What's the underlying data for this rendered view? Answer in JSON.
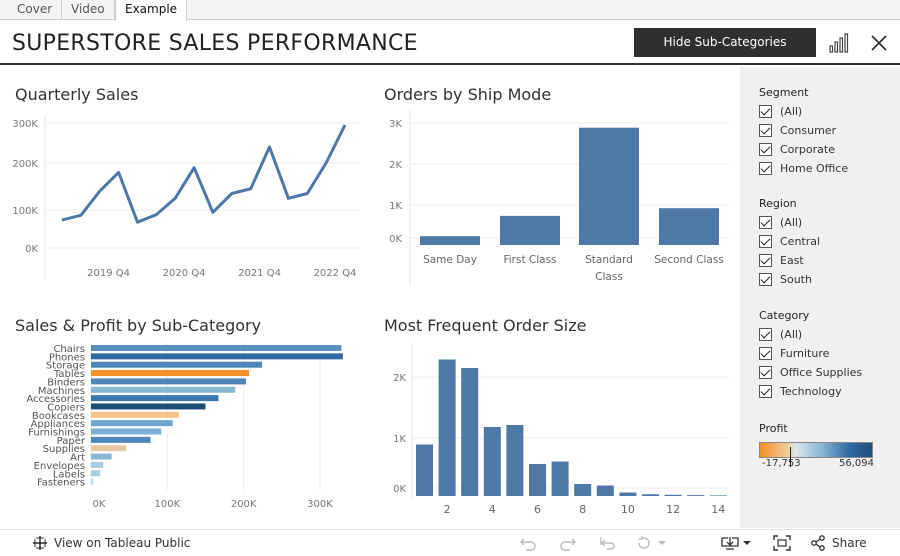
{
  "tabs": [
    {
      "label": "Cover",
      "active": false
    },
    {
      "label": "Video",
      "active": false
    },
    {
      "label": "Example",
      "active": true
    }
  ],
  "header": {
    "title": "SUPERSTORE SALES PERFORMANCE",
    "toggle_button": "Hide Sub-Categories"
  },
  "panels": {
    "quarterly": "Quarterly Sales",
    "shipmode": "Orders by Ship Mode",
    "subcategory": "Sales & Profit by Sub-Category",
    "ordersize": "Most Frequent Order Size"
  },
  "chart_data": [
    {
      "type": "line",
      "title": "Quarterly Sales",
      "y_ticks": [
        "0K",
        "100K",
        "200K",
        "300K"
      ],
      "x_ticks": [
        "2019 Q4",
        "2020 Q4",
        "2021 Q4",
        "2022 Q4"
      ],
      "ylim": [
        0,
        330000
      ],
      "series_color": "#4e79a7",
      "values": [
        74000,
        86000,
        140000,
        180000,
        68000,
        88000,
        125000,
        190000,
        94000,
        135000,
        145000,
        240000,
        125000,
        135000,
        200000,
        295000
      ]
    },
    {
      "type": "bar",
      "title": "Orders by Ship Mode",
      "y_ticks": [
        "0K",
        "1K",
        "2K",
        "3K"
      ],
      "ylim": [
        0,
        3300
      ],
      "categories": [
        [
          "Same Day"
        ],
        [
          "First Class"
        ],
        [
          "Standard",
          "Class"
        ],
        [
          "Second Class"
        ]
      ],
      "values": [
        230,
        760,
        3060,
        960
      ],
      "color": "#4e79a7"
    },
    {
      "type": "bar",
      "orientation": "horizontal",
      "title": "Sales & Profit by Sub-Category",
      "x_ticks": [
        "0K",
        "100K",
        "200K",
        "300K"
      ],
      "xlim": [
        0,
        340000
      ],
      "categories": [
        "Chairs",
        "Phones",
        "Storage",
        "Tables",
        "Binders",
        "Machines",
        "Accessories",
        "Copiers",
        "Bookcases",
        "Appliances",
        "Furnishings",
        "Paper",
        "Supplies",
        "Art",
        "Envelopes",
        "Labels",
        "Fasteners"
      ],
      "values": [
        328000,
        330000,
        224000,
        207000,
        203000,
        189000,
        167000,
        150000,
        115000,
        107000,
        92000,
        78000,
        46000,
        27000,
        16000,
        12000,
        3000
      ],
      "colors": [
        "#5b8fbf",
        "#2f6aa3",
        "#4e86bc",
        "#f28e2b",
        "#4e86bc",
        "#8ab6d6",
        "#3b77b1",
        "#1f4e79",
        "#f5c48a",
        "#6fa4cf",
        "#7ab0d6",
        "#4e86bc",
        "#e9c9a2",
        "#8ab6d6",
        "#a9cbe2",
        "#a9cbe2",
        "#c2d9ea"
      ]
    },
    {
      "type": "bar",
      "title": "Most Frequent Order Size",
      "y_ticks": [
        "0K",
        "1K",
        "2K"
      ],
      "ylim": [
        0,
        2600
      ],
      "x_ticks": [
        "2",
        "4",
        "6",
        "8",
        "10",
        "12",
        "14"
      ],
      "x": [
        1,
        2,
        3,
        4,
        5,
        6,
        7,
        8,
        9,
        10,
        11,
        12,
        13,
        14
      ],
      "values": [
        1030,
        2730,
        2560,
        1380,
        1420,
        640,
        690,
        240,
        210,
        70,
        35,
        25,
        18,
        12
      ],
      "color": "#4e79a7"
    }
  ],
  "filters": [
    {
      "heading": "Segment",
      "items": [
        "(All)",
        "Consumer",
        "Corporate",
        "Home Office"
      ]
    },
    {
      "heading": "Region",
      "items": [
        "(All)",
        "Central",
        "East",
        "South"
      ]
    },
    {
      "heading": "Category",
      "items": [
        "(All)",
        "Furniture",
        "Office Supplies",
        "Technology"
      ]
    }
  ],
  "profit_legend": {
    "heading": "Profit",
    "min": "-17,753",
    "max": "56,094"
  },
  "footer": {
    "view_label": "View on Tableau Public",
    "share_label": "Share"
  }
}
